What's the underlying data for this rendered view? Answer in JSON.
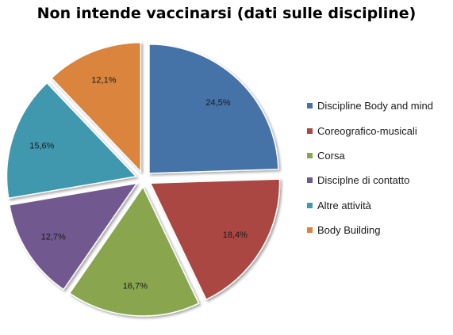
{
  "chart_data": {
    "type": "pie",
    "title": "Non intende vaccinarsi (dati sulle discipline)",
    "exploded": true,
    "legend_position": "right",
    "slices": [
      {
        "name": "Discipline Body and mind",
        "value": 24.5,
        "label": "24,5%",
        "color": "#4572A7"
      },
      {
        "name": "Coreografico-musicali",
        "value": 18.4,
        "label": "18,4%",
        "color": "#AA4643"
      },
      {
        "name": "Corsa",
        "value": 16.7,
        "label": "16,7%",
        "color": "#89A54E"
      },
      {
        "name": "Disciplne di contatto",
        "value": 12.7,
        "label": "12,7%",
        "color": "#71588F"
      },
      {
        "name": "Altre attività",
        "value": 15.6,
        "label": "15,6%",
        "color": "#4198AF"
      },
      {
        "name": "Body Building",
        "value": 12.1,
        "label": "12,1%",
        "color": "#DB843D"
      }
    ]
  }
}
